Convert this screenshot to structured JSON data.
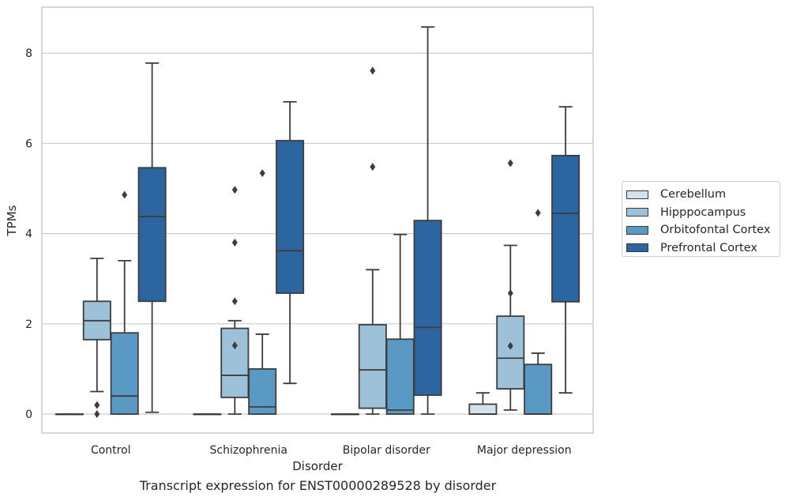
{
  "chart_data": {
    "type": "boxplot",
    "xlabel": "Disorder",
    "ylabel": "TPMs",
    "caption": "Transcript expression for ENST00000289528 by disorder",
    "ylim": [
      -0.42,
      9.02
    ],
    "yticks": [
      0,
      2,
      4,
      6,
      8
    ],
    "categories": [
      "Control",
      "Schizophrenia",
      "Bipolar disorder",
      "Major depression"
    ],
    "grid": "horizontal",
    "legend_position": "right",
    "series": [
      {
        "name": "Cerebellum",
        "color": "#d1e1ee",
        "boxes": [
          {
            "q1": 0,
            "median": 0,
            "q3": 0,
            "whisker_low": 0,
            "whisker_high": 0,
            "outliers": []
          },
          {
            "q1": 0,
            "median": 0,
            "q3": 0,
            "whisker_low": 0,
            "whisker_high": 0,
            "outliers": []
          },
          {
            "q1": 0,
            "median": 0,
            "q3": 0,
            "whisker_low": 0,
            "whisker_high": 0,
            "outliers": []
          },
          {
            "q1": 0,
            "median": 0,
            "q3": 0.22,
            "whisker_low": 0,
            "whisker_high": 0.47,
            "outliers": []
          }
        ]
      },
      {
        "name": "Hipppocampus",
        "color": "#9cc1d9",
        "boxes": [
          {
            "q1": 1.65,
            "median": 2.07,
            "q3": 2.5,
            "whisker_low": 0.5,
            "whisker_high": 3.45,
            "outliers": [
              0.2,
              0.0
            ]
          },
          {
            "q1": 0.37,
            "median": 0.86,
            "q3": 1.9,
            "whisker_low": 0,
            "whisker_high": 2.07,
            "outliers": [
              3.8,
              4.97,
              2.5,
              1.52
            ]
          },
          {
            "q1": 0.13,
            "median": 0.98,
            "q3": 1.98,
            "whisker_low": 0,
            "whisker_high": 3.2,
            "outliers": [
              7.61,
              5.48
            ]
          },
          {
            "q1": 0.56,
            "median": 1.24,
            "q3": 2.17,
            "whisker_low": 0.09,
            "whisker_high": 3.74,
            "outliers": [
              5.56,
              2.68,
              1.51
            ]
          }
        ]
      },
      {
        "name": "Orbitofontal Cortex",
        "color": "#5a99c4",
        "boxes": [
          {
            "q1": 0,
            "median": 0.4,
            "q3": 1.8,
            "whisker_low": 0,
            "whisker_high": 3.4,
            "outliers": [
              4.86
            ]
          },
          {
            "q1": 0,
            "median": 0.16,
            "q3": 1.0,
            "whisker_low": 0,
            "whisker_high": 1.77,
            "outliers": [
              5.34
            ]
          },
          {
            "q1": 0,
            "median": 0.09,
            "q3": 1.66,
            "whisker_low": 0,
            "whisker_high": 3.98,
            "outliers": []
          },
          {
            "q1": 0,
            "median": 0,
            "q3": 1.1,
            "whisker_low": 0,
            "whisker_high": 1.35,
            "outliers": [
              4.46
            ]
          }
        ]
      },
      {
        "name": "Prefrontal Cortex",
        "color": "#2c66a0",
        "boxes": [
          {
            "q1": 2.5,
            "median": 4.38,
            "q3": 5.46,
            "whisker_low": 0.04,
            "whisker_high": 7.78,
            "outliers": []
          },
          {
            "q1": 2.68,
            "median": 3.62,
            "q3": 6.06,
            "whisker_low": 0.68,
            "whisker_high": 6.92,
            "outliers": []
          },
          {
            "q1": 0.42,
            "median": 1.92,
            "q3": 4.29,
            "whisker_low": 0,
            "whisker_high": 8.58,
            "outliers": []
          },
          {
            "q1": 2.49,
            "median": 4.45,
            "q3": 5.73,
            "whisker_low": 0.47,
            "whisker_high": 6.81,
            "outliers": []
          }
        ]
      }
    ]
  }
}
